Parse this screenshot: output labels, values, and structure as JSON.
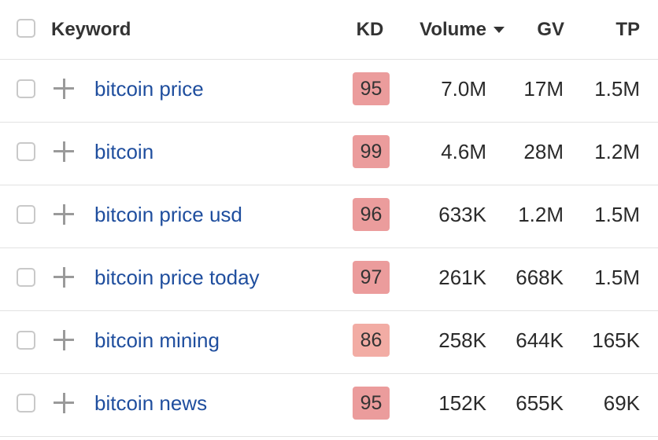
{
  "table": {
    "columns": [
      "Keyword",
      "KD",
      "Volume",
      "GV",
      "TP"
    ],
    "rows": [
      [
        "bitcoin price",
        95,
        "7.0M",
        "17M",
        "1.5M"
      ],
      [
        "bitcoin",
        99,
        "4.6M",
        "28M",
        "1.2M"
      ],
      [
        "bitcoin price usd",
        96,
        "633K",
        "1.2M",
        "1.5M"
      ],
      [
        "bitcoin price today",
        97,
        "261K",
        "668K",
        "1.5M"
      ],
      [
        "bitcoin mining",
        86,
        "258K",
        "644K",
        "165K"
      ],
      [
        "bitcoin news",
        95,
        "152K",
        "655K",
        "69K"
      ]
    ]
  }
}
